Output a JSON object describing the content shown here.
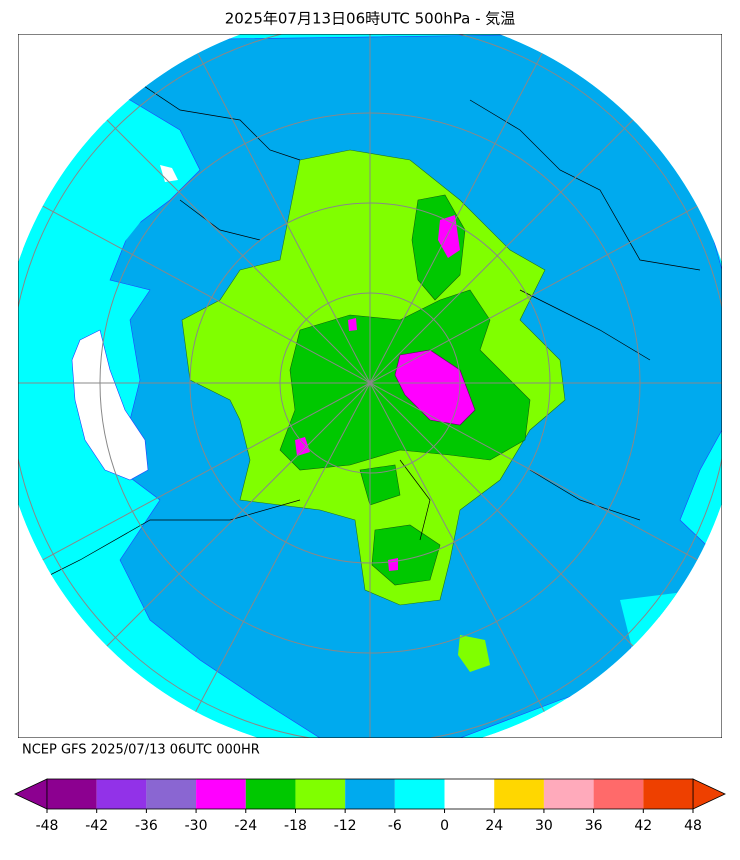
{
  "header": {
    "title": "2025年07月13日06時UTC 500hPa - 気温"
  },
  "footer": {
    "text": "NCEP GFS 2025/07/13 06UTC 000HR"
  },
  "colorbar": {
    "ticks": [
      -48,
      -42,
      -36,
      -30,
      -24,
      -18,
      -12,
      -6,
      0,
      24,
      30,
      36,
      42,
      48
    ],
    "colors": [
      "#8c0090",
      "#9232e8",
      "#8a66d2",
      "#ff00ff",
      "#00c800",
      "#80ff00",
      "#00aaee",
      "#00ffff",
      "#ffffff",
      "#ffd700",
      "#ffaabb",
      "#ff6a6a",
      "#ee4000"
    ],
    "under_color": "#8c0090",
    "over_color": "#ee4000"
  }
}
